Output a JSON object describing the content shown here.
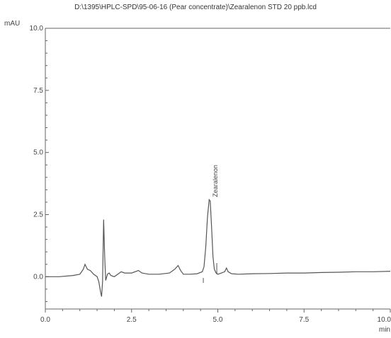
{
  "chart_data": {
    "type": "line",
    "title": "D:\\1395\\HPLC-SPD\\95-06-16 (Pear concentrate)\\Zearalenon STD 20 ppb.lcd",
    "xlabel": "min",
    "ylabel": "mAU",
    "xlim": [
      0.0,
      10.0
    ],
    "ylim": [
      -1.3,
      10.0
    ],
    "x_ticks": [
      "0.0",
      "2.5",
      "5.0",
      "7.5",
      "10.0"
    ],
    "y_ticks": [
      "0.0",
      "2.5",
      "5.0",
      "7.5",
      "10.0"
    ],
    "grid": false,
    "series": [
      {
        "x": [
          0.0,
          0.4,
          0.8,
          1.0,
          1.1,
          1.15,
          1.22,
          1.3,
          1.4,
          1.5,
          1.55,
          1.6,
          1.63,
          1.66,
          1.69,
          1.72,
          1.75,
          1.8,
          1.85,
          1.9,
          2.0,
          2.1,
          2.2,
          2.3,
          2.5,
          2.7,
          2.8,
          3.0,
          3.3,
          3.6,
          3.75,
          3.85,
          3.92,
          4.0,
          4.2,
          4.4,
          4.55,
          4.6,
          4.65,
          4.7,
          4.75,
          4.78,
          4.82,
          4.86,
          4.9,
          4.95,
          5.0,
          5.05,
          5.2,
          5.25,
          5.3,
          5.4,
          5.6,
          6.0,
          6.5,
          7.0,
          7.5,
          8.0,
          8.5,
          9.0,
          9.5,
          10.0
        ],
        "y": [
          0.0,
          0.0,
          0.05,
          0.1,
          0.3,
          0.5,
          0.3,
          0.25,
          0.1,
          0.0,
          -0.2,
          -0.6,
          -0.8,
          -0.2,
          2.3,
          0.8,
          -0.15,
          0.1,
          0.15,
          0.05,
          0.0,
          0.1,
          0.2,
          0.15,
          0.15,
          0.25,
          0.15,
          0.1,
          0.1,
          0.15,
          0.3,
          0.45,
          0.25,
          0.1,
          0.1,
          0.12,
          0.2,
          0.4,
          1.2,
          2.4,
          3.1,
          3.05,
          2.0,
          0.8,
          0.3,
          0.15,
          0.1,
          0.12,
          0.2,
          0.35,
          0.2,
          0.12,
          0.1,
          0.12,
          0.13,
          0.15,
          0.15,
          0.17,
          0.18,
          0.2,
          0.2,
          0.22
        ]
      }
    ],
    "annotations": [
      {
        "text": "Zearalenon",
        "x": 4.78,
        "y": 3.15
      }
    ]
  }
}
